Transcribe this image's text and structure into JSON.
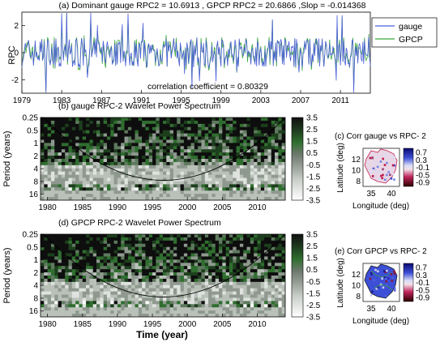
{
  "figure": {
    "panel_a_title": "(a) Dominant gauge RPC2 = 10.6913 , GPCP RPC2 = 20.6866 ,Slop = -0.014368",
    "panel_a_annotation": "correlation coefficient = 0.80329",
    "panel_b_title": "(b) gauge RPC-2 Wavelet Power Spectrum",
    "panel_c_title": "(c) Corr gauge vs RPC- 2",
    "panel_d_title": "(d) GPCP RPC-2 Wavelet Power Spectrum",
    "panel_e_title": "(e) Corr GPCP vs RPC- 2",
    "bottom_xlabel": "Time (year)"
  },
  "chart_data": [
    {
      "id": "a",
      "type": "line",
      "title": "(a) Dominant gauge RPC2 = 10.6913 , GPCP RPC2 = 20.6866 ,Slop = -0.014368",
      "ylabel": "RPC",
      "xlabel": "",
      "xlim": [
        1979,
        2014
      ],
      "ylim": [
        -3,
        3
      ],
      "x_ticks": [
        "1979",
        "1983",
        "1987",
        "1991",
        "1995",
        "1999",
        "2003",
        "2007",
        "2011"
      ],
      "y_ticks": [
        "-2",
        "0",
        "2"
      ],
      "series": [
        {
          "name": "gauge",
          "color": "#4a5fd6"
        },
        {
          "name": "GPCP",
          "color": "#3aa63a"
        }
      ],
      "annotation": "correlation coefficient = 0.80329",
      "legend": "top-right",
      "note": "monthly RPC time series; individual values not legible"
    },
    {
      "id": "b",
      "type": "heatmap",
      "title": "(b) gauge RPC-2 Wavelet Power Spectrum",
      "ylabel": "Period (years)",
      "xlim": [
        1979,
        2014
      ],
      "x_ticks": [
        "1980",
        "1985",
        "1990",
        "1995",
        "2000",
        "2005",
        "2010"
      ],
      "y_ticks": [
        "0.25",
        "0.5",
        "1",
        "2",
        "4",
        "8",
        "16"
      ],
      "y_scale": "log2",
      "colorbar": {
        "ticks": [
          "3.5",
          "2.5",
          "1.5",
          "0.5",
          "-0.5",
          "-1.5",
          "-2.5",
          "-3.5"
        ],
        "colormap": "gray"
      },
      "cone_of_influence": true
    },
    {
      "id": "c",
      "type": "heatmap",
      "title": "(c) Corr gauge vs RPC- 2",
      "xlabel": "Longitude (deg)",
      "ylabel": "Latitude (deg)",
      "x_ticks": [
        "35",
        "40"
      ],
      "y_ticks": [
        "8",
        "10",
        "12"
      ],
      "colorbar": {
        "ticks": [
          "0.7",
          "0.3",
          "-0.1",
          "-0.5",
          "-0.9"
        ]
      }
    },
    {
      "id": "d",
      "type": "heatmap",
      "title": "(d) GPCP RPC-2 Wavelet Power Spectrum",
      "ylabel": "Period (years)",
      "xlabel": "Time (year)",
      "xlim": [
        1979,
        2014
      ],
      "x_ticks": [
        "1980",
        "1985",
        "1990",
        "1995",
        "2000",
        "2005",
        "2010"
      ],
      "y_ticks": [
        "0.25",
        "0.5",
        "1",
        "2",
        "4",
        "8",
        "16"
      ],
      "y_scale": "log2",
      "colorbar": {
        "ticks": [
          "3.5",
          "2.5",
          "1.5",
          "0.5",
          "-0.5",
          "-1.5",
          "-2.5",
          "-3.5"
        ],
        "colormap": "gray"
      },
      "cone_of_influence": true
    },
    {
      "id": "e",
      "type": "heatmap",
      "title": "(e) Corr GPCP vs RPC- 2",
      "xlabel": "Longitude (deg)",
      "ylabel": "Latitude (deg)",
      "x_ticks": [
        "35",
        "40"
      ],
      "y_ticks": [
        "8",
        "10",
        "12"
      ],
      "colorbar": {
        "ticks": [
          "0.7",
          "0.3",
          "-0.1",
          "-0.5",
          "-0.9"
        ]
      }
    }
  ]
}
